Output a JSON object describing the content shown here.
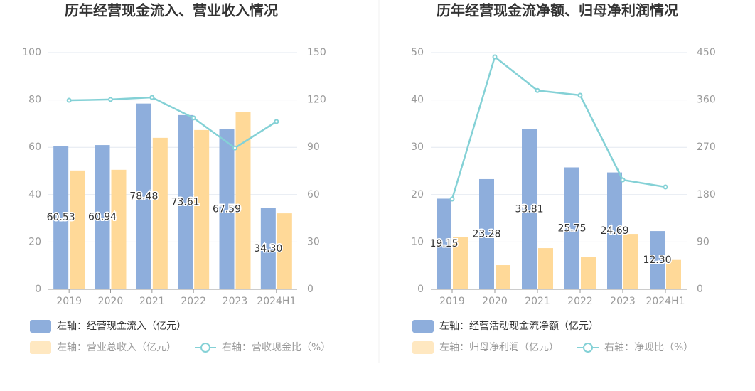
{
  "chart_data": [
    {
      "type": "bar",
      "title": "历年经营现金流入、营业收入情况",
      "categories": [
        "2019",
        "2020",
        "2021",
        "2022",
        "2023",
        "2024H1"
      ],
      "ylim": [
        0,
        100
      ],
      "yticks": [
        0,
        20,
        40,
        60,
        80,
        100
      ],
      "y2lim": [
        0,
        150
      ],
      "y2ticks": [
        0,
        30,
        60,
        90,
        120,
        150
      ],
      "grid": true,
      "series": [
        {
          "name": "左轴：经营现金流入（亿元）",
          "type": "bar",
          "color": "#8eaedc",
          "values": [
            60.53,
            60.94,
            78.48,
            73.61,
            67.59,
            34.3
          ],
          "value_labels": [
            "60.53",
            "60.94",
            "78.48",
            "73.61",
            "67.59",
            "34.30"
          ]
        },
        {
          "name": "左轴：营业总收入（亿元）",
          "type": "bar",
          "color": "#ffd998",
          "values": [
            50.2,
            50.5,
            64.0,
            67.3,
            74.8,
            32.1
          ]
        },
        {
          "name": "右轴：营收现金比（%）",
          "type": "line",
          "axis": "y2",
          "color": "#84d1d6",
          "values": [
            119.8,
            120.3,
            121.6,
            108.6,
            89.6,
            106.3
          ]
        }
      ]
    },
    {
      "type": "bar",
      "title": "历年经营现金流净额、归母净利润情况",
      "categories": [
        "2019",
        "2020",
        "2021",
        "2022",
        "2023",
        "2024H1"
      ],
      "ylim": [
        0,
        50
      ],
      "yticks": [
        0,
        10,
        20,
        30,
        40,
        50
      ],
      "y2lim": [
        0,
        450
      ],
      "y2ticks": [
        0,
        90,
        180,
        270,
        360,
        450
      ],
      "grid": true,
      "series": [
        {
          "name": "左轴：经营活动现金流净额（亿元）",
          "type": "bar",
          "color": "#8eaedc",
          "values": [
            19.15,
            23.28,
            33.81,
            25.75,
            24.69,
            12.3
          ],
          "value_labels": [
            "19.15",
            "23.28",
            "33.81",
            "25.75",
            "24.69",
            "12.30"
          ]
        },
        {
          "name": "左轴：归母净利润（亿元）",
          "type": "bar",
          "color": "#ffd998",
          "values": [
            11.0,
            5.1,
            8.7,
            6.8,
            11.7,
            6.2
          ]
        },
        {
          "name": "右轴：净现比（%）",
          "type": "line",
          "axis": "y2",
          "color": "#84d1d6",
          "values": [
            171.6,
            441.9,
            378.0,
            369.0,
            208.0,
            194.6
          ]
        }
      ]
    }
  ]
}
